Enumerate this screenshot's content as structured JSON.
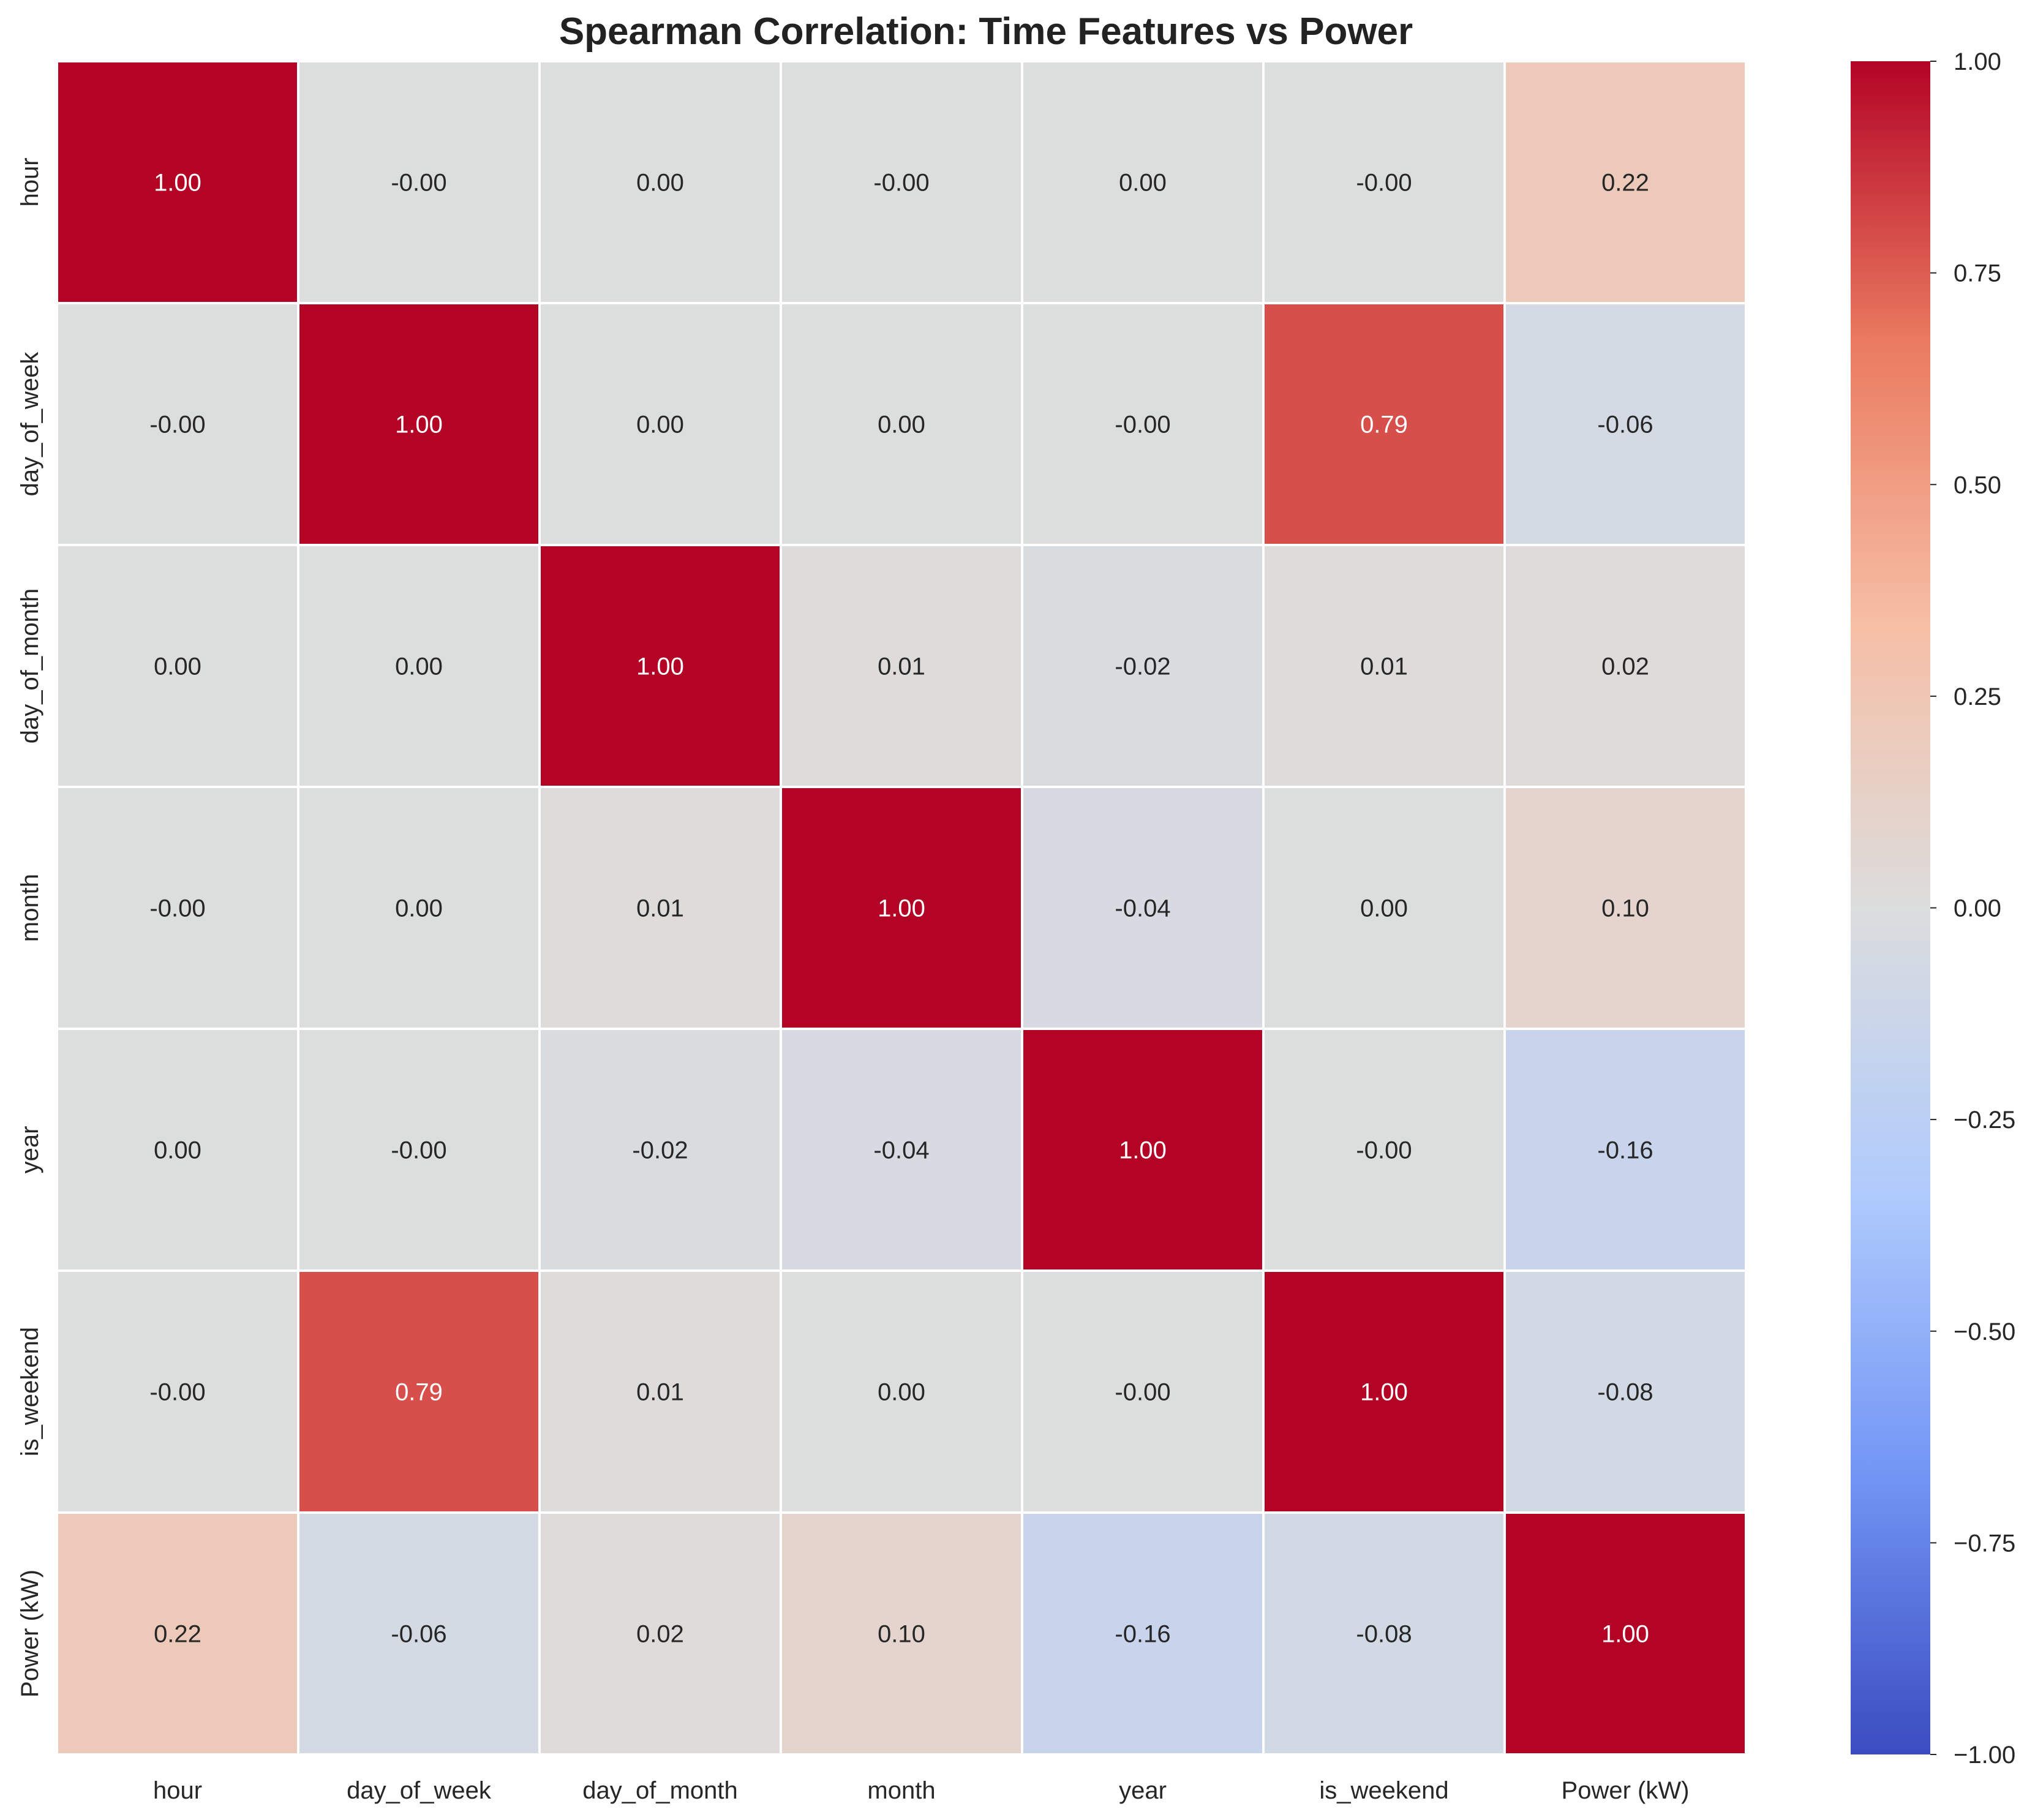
{
  "chart_data": {
    "type": "heatmap",
    "title": "Spearman Correlation: Time Features vs Power",
    "row_labels": [
      "hour",
      "day_of_week",
      "day_of_month",
      "month",
      "year",
      "is_weekend",
      "Power (kW)"
    ],
    "col_labels": [
      "hour",
      "day_of_week",
      "day_of_month",
      "month",
      "year",
      "is_weekend",
      "Power (kW)"
    ],
    "values": [
      [
        1.0,
        -0.0,
        0.0,
        -0.0,
        0.0,
        -0.0,
        0.22
      ],
      [
        -0.0,
        1.0,
        0.0,
        0.0,
        -0.0,
        0.79,
        -0.06
      ],
      [
        0.0,
        0.0,
        1.0,
        0.01,
        -0.02,
        0.01,
        0.02
      ],
      [
        -0.0,
        0.0,
        0.01,
        1.0,
        -0.04,
        0.0,
        0.1
      ],
      [
        0.0,
        -0.0,
        -0.02,
        -0.04,
        1.0,
        -0.0,
        -0.16
      ],
      [
        -0.0,
        0.79,
        0.01,
        0.0,
        -0.0,
        1.0,
        -0.08
      ],
      [
        0.22,
        -0.06,
        0.02,
        0.1,
        -0.16,
        -0.08,
        1.0
      ]
    ],
    "cell_labels": [
      [
        "1.00",
        "-0.00",
        "0.00",
        "-0.00",
        "0.00",
        "-0.00",
        "0.22"
      ],
      [
        "-0.00",
        "1.00",
        "0.00",
        "0.00",
        "-0.00",
        "0.79",
        "-0.06"
      ],
      [
        "0.00",
        "0.00",
        "1.00",
        "0.01",
        "-0.02",
        "0.01",
        "0.02"
      ],
      [
        "-0.00",
        "0.00",
        "0.01",
        "1.00",
        "-0.04",
        "0.00",
        "0.10"
      ],
      [
        "0.00",
        "-0.00",
        "-0.02",
        "-0.04",
        "1.00",
        "-0.00",
        "-0.16"
      ],
      [
        "-0.00",
        "0.79",
        "0.01",
        "0.00",
        "-0.00",
        "1.00",
        "-0.08"
      ],
      [
        "0.22",
        "-0.06",
        "0.02",
        "0.10",
        "-0.16",
        "-0.08",
        "1.00"
      ]
    ],
    "colorscale": "coolwarm",
    "colorscale_stops": [
      "#3b4cc0",
      "#7396f5",
      "#b0cbfc",
      "#dcdddd",
      "#f6bfa6",
      "#ea7b60",
      "#b40426"
    ],
    "vmin": -1.0,
    "vmax": 1.0,
    "colorbar_ticks": [
      1.0,
      0.75,
      0.5,
      0.25,
      0.0,
      -0.25,
      -0.5,
      -0.75,
      -1.0
    ],
    "colorbar_tick_labels": [
      "1.00",
      "0.75",
      "0.50",
      "0.25",
      "0.00",
      "−0.25",
      "−0.50",
      "−0.75",
      "−1.00"
    ],
    "colorbar_placement": "right",
    "grid_lines": "white",
    "xlabel": "",
    "ylabel": ""
  }
}
